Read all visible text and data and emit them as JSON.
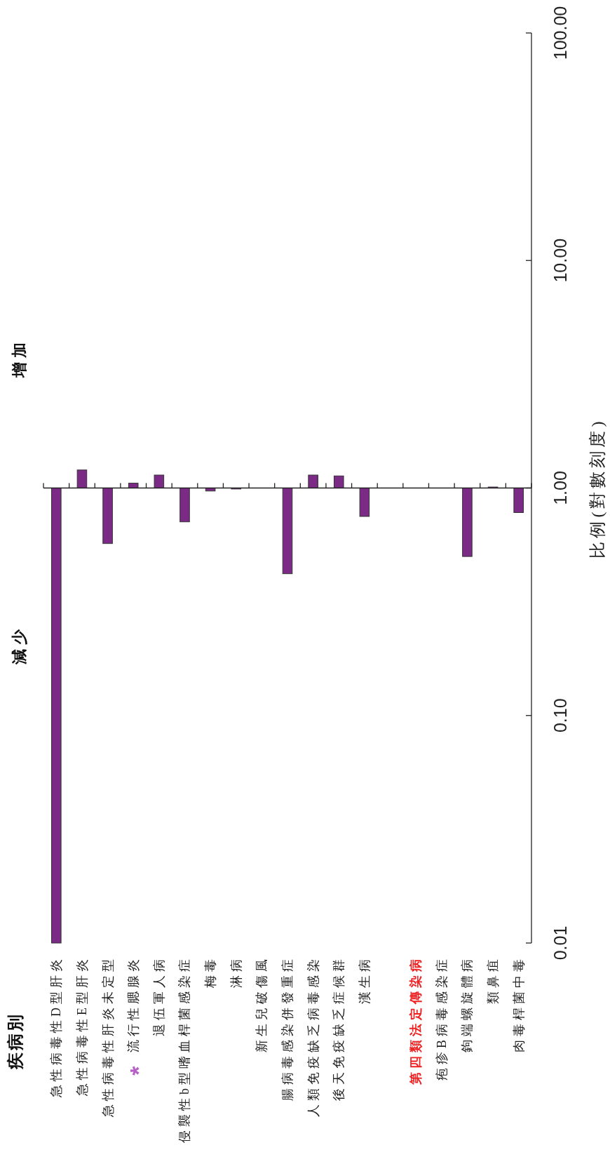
{
  "chart_data": {
    "type": "bar",
    "log": "y",
    "ylabel": "比例(對數刻度)",
    "categories": [
      "急性病毒性D型肝炎",
      "急性病毒性E型肝炎",
      "急性病毒性肝炎未定型",
      "流行性腮腺炎",
      "退伍軍人病",
      "侵襲性b型嗜血桿菌感染症",
      "梅毒",
      "淋病",
      "新生兒破傷風",
      "腸病毒感染併發重症",
      "人類免疫缺乏病毒感染",
      "後天免疫缺乏症候群",
      "漢生病",
      null,
      "第四類法定傳染病",
      "疱疹B病毒感染症",
      "鉤端螺旋體病",
      "類鼻疽",
      "肉毒桿菌中毒"
    ],
    "base": [
      1,
      1,
      1,
      1,
      1,
      1,
      1,
      1,
      null,
      1,
      1,
      1,
      1,
      null,
      null,
      null,
      1,
      1,
      1
    ],
    "values": [
      -0.99,
      0.2,
      -0.43,
      0.05,
      0.14,
      -0.29,
      -0.03,
      -0.01,
      null,
      -0.58,
      0.14,
      0.13,
      -0.25,
      null,
      null,
      null,
      -0.5,
      0.01,
      -0.22
    ],
    "color": "#7b2a86",
    "ylim": [
      0.01,
      100
    ],
    "yticks": [
      0.01,
      {
        "value": 0.1,
        "label": "0.10"
      },
      {
        "value": 1,
        "label": "1.00"
      },
      {
        "value": 10,
        "label": "10.00"
      },
      {
        "value": 100,
        "label": "100.00"
      }
    ],
    "ref_lines": [
      {
        "axis": "y",
        "value": 1
      }
    ],
    "annotations": [
      "疾病別",
      "減少",
      "增加",
      "*"
    ]
  }
}
